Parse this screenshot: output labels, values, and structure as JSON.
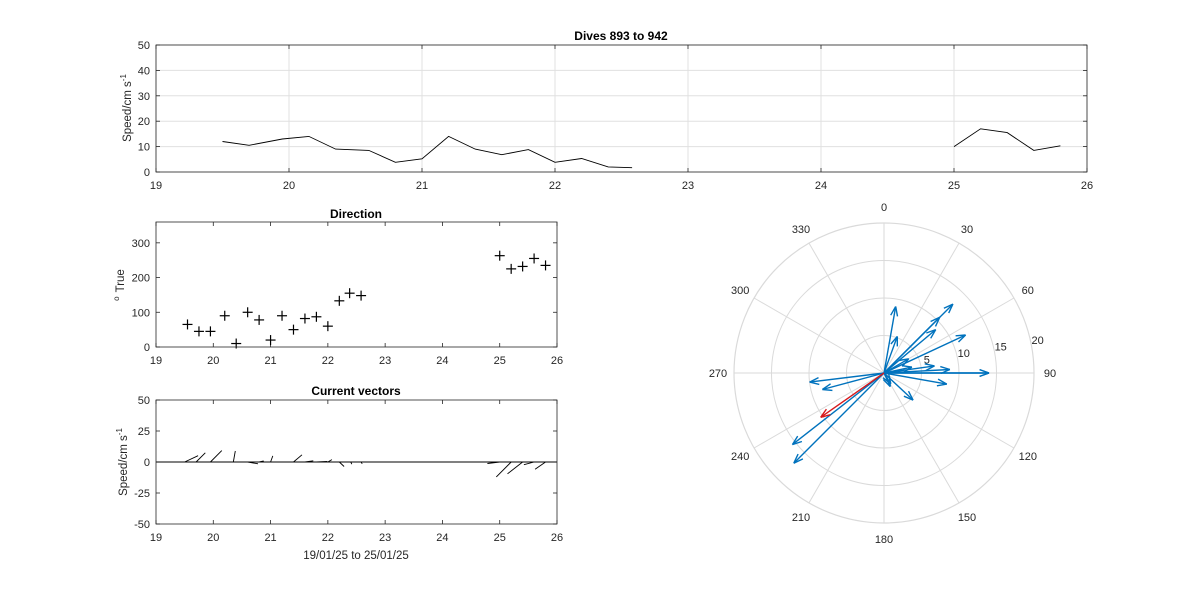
{
  "figure": {
    "title": "Dives 893 to 942",
    "speed_ylabel": "Speed/cm s",
    "speed_ylabel_exp": "-1",
    "direction_title": "Direction",
    "direction_ylabel_deg": "o",
    "direction_ylabel": "True",
    "vectors_title": "Current vectors",
    "vectors_ylabel": "Speed/cm s",
    "vectors_ylabel_exp": "-1",
    "vectors_xlabel": "19/01/25 to 25/01/25"
  },
  "colors": {
    "arrow": "#0072BD",
    "latest_arrow": "#D7191C",
    "grid": "#E0E0E0",
    "axes": "#262626"
  },
  "chart_data": [
    {
      "type": "line",
      "title": "Dives 893 to 942",
      "ylabel": "Speed/cm s-1",
      "xlim": [
        19,
        26
      ],
      "ylim": [
        0,
        50
      ],
      "xticks": [
        19,
        20,
        21,
        22,
        23,
        24,
        25,
        26
      ],
      "yticks": [
        0,
        10,
        20,
        30,
        40,
        50
      ],
      "grid": true,
      "segments": [
        [
          [
            19.5,
            12
          ],
          [
            19.7,
            10.5
          ],
          [
            19.95,
            13
          ],
          [
            20.15,
            14
          ],
          [
            20.35,
            9
          ],
          [
            20.6,
            8.5
          ],
          [
            20.8,
            3.8
          ],
          [
            21.0,
            5.2
          ],
          [
            21.2,
            14
          ],
          [
            21.4,
            9
          ],
          [
            21.6,
            6.8
          ],
          [
            21.8,
            8.8
          ],
          [
            22.0,
            3.8
          ],
          [
            22.2,
            5.3
          ],
          [
            22.4,
            2
          ],
          [
            22.58,
            1.7
          ]
        ],
        [
          [
            25.0,
            10
          ],
          [
            25.2,
            17
          ],
          [
            25.4,
            15.5
          ],
          [
            25.6,
            8.5
          ],
          [
            25.8,
            10.3
          ]
        ]
      ]
    },
    {
      "type": "scatter",
      "title": "Direction",
      "ylabel": "o True",
      "xlim": [
        19,
        26
      ],
      "ylim": [
        0,
        360
      ],
      "xticks": [
        19,
        20,
        21,
        22,
        23,
        24,
        25,
        26
      ],
      "yticks": [
        0,
        100,
        200,
        300
      ],
      "grid": false,
      "marker": "+",
      "points": [
        [
          19.55,
          65
        ],
        [
          19.75,
          45
        ],
        [
          19.95,
          45
        ],
        [
          20.2,
          90
        ],
        [
          20.4,
          10
        ],
        [
          20.6,
          100
        ],
        [
          20.8,
          78
        ],
        [
          21.0,
          20
        ],
        [
          21.2,
          90
        ],
        [
          21.4,
          50
        ],
        [
          21.6,
          82
        ],
        [
          21.8,
          87
        ],
        [
          22.0,
          60
        ],
        [
          22.2,
          133
        ],
        [
          22.38,
          155
        ],
        [
          22.58,
          148
        ],
        [
          25.0,
          263
        ],
        [
          25.2,
          225
        ],
        [
          25.4,
          232
        ],
        [
          25.6,
          255
        ],
        [
          25.8,
          235
        ]
      ]
    },
    {
      "type": "vector",
      "title": "Current vectors",
      "ylabel": "Speed/cm s-1",
      "xlabel": "19/01/25 to 25/01/25",
      "xlim": [
        19,
        26
      ],
      "ylim": [
        -50,
        50
      ],
      "xticks": [
        19,
        20,
        21,
        22,
        23,
        24,
        25,
        26
      ],
      "yticks": [
        -50,
        -25,
        0,
        25,
        50
      ],
      "grid": false,
      "vectors": [
        [
          19.5,
          12,
          65
        ],
        [
          19.7,
          10.5,
          45
        ],
        [
          19.95,
          13,
          45
        ],
        [
          20.15,
          14,
          90
        ],
        [
          20.35,
          9,
          10
        ],
        [
          20.6,
          8.5,
          100
        ],
        [
          20.8,
          3.8,
          78
        ],
        [
          21.0,
          5.2,
          20
        ],
        [
          21.2,
          14,
          90
        ],
        [
          21.4,
          9,
          50
        ],
        [
          21.6,
          6.8,
          82
        ],
        [
          21.8,
          8.8,
          87
        ],
        [
          22.0,
          3.8,
          60
        ],
        [
          22.2,
          5.3,
          133
        ],
        [
          22.4,
          2,
          155
        ],
        [
          22.58,
          1.7,
          148
        ],
        [
          25.0,
          10,
          263
        ],
        [
          25.2,
          17,
          225
        ],
        [
          25.4,
          15.5,
          232
        ],
        [
          25.6,
          8.5,
          255
        ],
        [
          25.8,
          10.3,
          235
        ]
      ]
    },
    {
      "type": "polar",
      "rlim": [
        0,
        20
      ],
      "r_ticks": [
        5,
        10,
        15,
        20
      ],
      "theta_ticks": [
        0,
        30,
        60,
        90,
        120,
        150,
        180,
        210,
        240,
        270,
        300,
        330
      ],
      "theta_zero": "top",
      "theta_direction": "clockwise",
      "arrows": [
        {
          "dir": 65,
          "speed": 12
        },
        {
          "dir": 45,
          "speed": 10.5
        },
        {
          "dir": 45,
          "speed": 13
        },
        {
          "dir": 90,
          "speed": 14
        },
        {
          "dir": 10,
          "speed": 9
        },
        {
          "dir": 100,
          "speed": 8.5
        },
        {
          "dir": 78,
          "speed": 3.8
        },
        {
          "dir": 20,
          "speed": 5.2
        },
        {
          "dir": 90,
          "speed": 14
        },
        {
          "dir": 50,
          "speed": 9
        },
        {
          "dir": 82,
          "speed": 6.8
        },
        {
          "dir": 87,
          "speed": 8.8
        },
        {
          "dir": 60,
          "speed": 3.8
        },
        {
          "dir": 133,
          "speed": 5.3
        },
        {
          "dir": 155,
          "speed": 2
        },
        {
          "dir": 148,
          "speed": 1.7
        },
        {
          "dir": 263,
          "speed": 10
        },
        {
          "dir": 225,
          "speed": 17
        },
        {
          "dir": 232,
          "speed": 15.5
        },
        {
          "dir": 255,
          "speed": 8.5
        },
        {
          "dir": 235,
          "speed": 10.3,
          "latest": true
        }
      ]
    }
  ]
}
